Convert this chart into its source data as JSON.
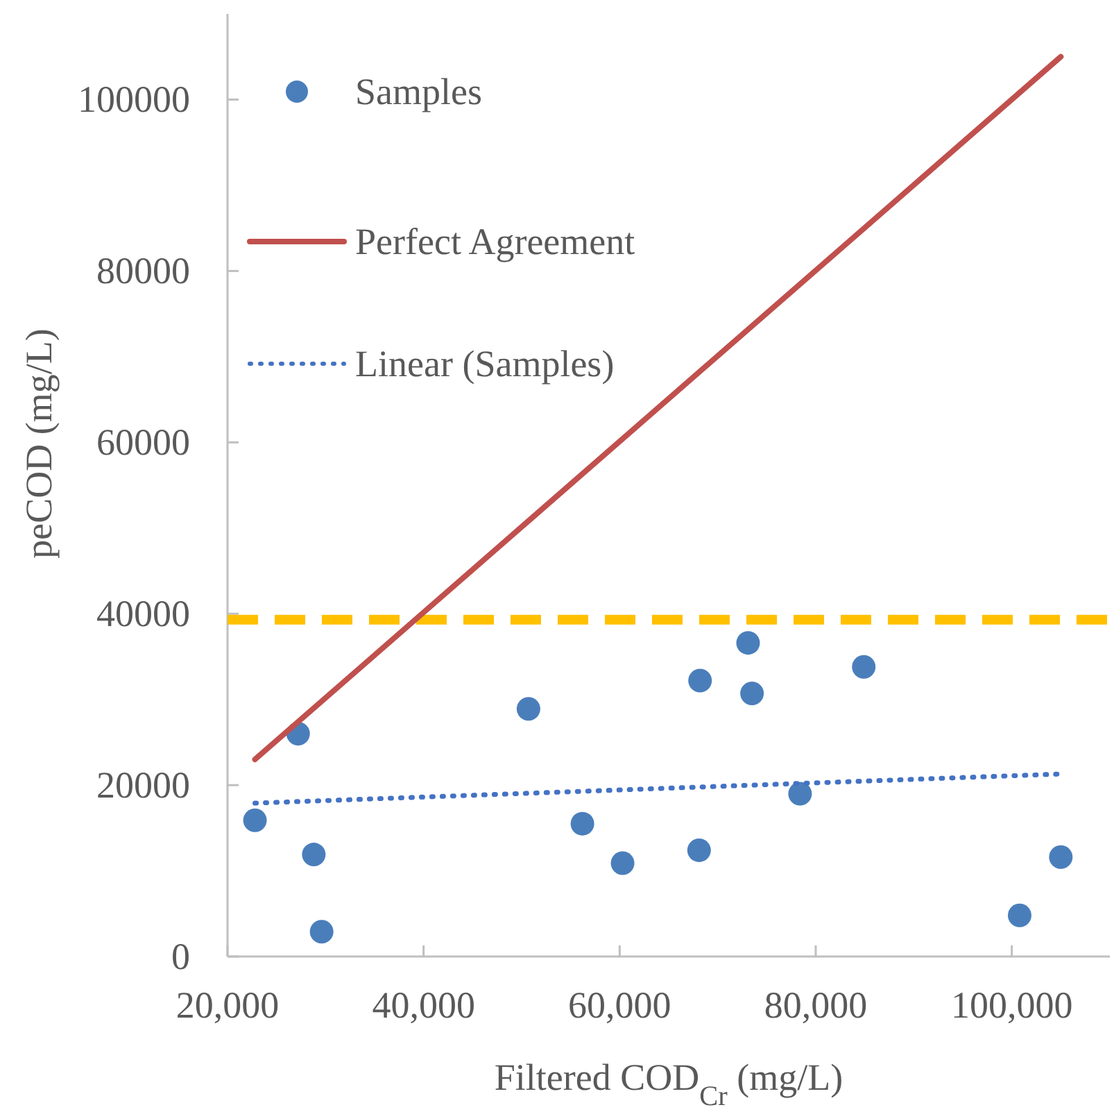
{
  "chart_data": {
    "type": "scatter",
    "xlabel": "Filtered COD$_{Cr}$ (mg/L)",
    "ylabel": "peCOD (mg/L)",
    "xlim": [
      20000,
      110000
    ],
    "ylim": [
      0,
      110000
    ],
    "xticks": [
      {
        "value": 20000,
        "label": "20,000"
      },
      {
        "value": 40000,
        "label": "40,000"
      },
      {
        "value": 60000,
        "label": "60,000"
      },
      {
        "value": 80000,
        "label": "80,000"
      },
      {
        "value": 100000,
        "label": "100,000"
      }
    ],
    "yticks": [
      0,
      20000,
      40000,
      60000,
      80000,
      100000
    ],
    "grid": false,
    "legend": "top left",
    "series": [
      {
        "name": "Samples",
        "marker": "circle",
        "color": "#4a7ebb",
        "x": [
          22800,
          27200,
          28800,
          29600,
          50700,
          56200,
          60300,
          68200,
          68100,
          73100,
          73500,
          78400,
          84900,
          100800,
          105000
        ],
        "values": [
          15900,
          26000,
          11900,
          2900,
          28900,
          15500,
          10900,
          32200,
          12400,
          36600,
          30700,
          19000,
          33800,
          4800,
          11600
        ]
      },
      {
        "name": "Perfect Agreement",
        "type": "line",
        "marker": "none",
        "line_style": "solid",
        "color": "#c0504d",
        "x": [
          22800,
          105000
        ],
        "values": [
          23000,
          105000
        ]
      },
      {
        "name": "Linear (Samples)",
        "type": "line",
        "marker": "none",
        "line_style": "dotted",
        "color": "#4472c4",
        "x": [
          22800,
          105000
        ],
        "values": [
          17900,
          21300
        ]
      }
    ],
    "ref_lines": [
      {
        "axis": "y",
        "value": 39300,
        "color": "#ffc000",
        "line_style": "dashed"
      }
    ]
  }
}
